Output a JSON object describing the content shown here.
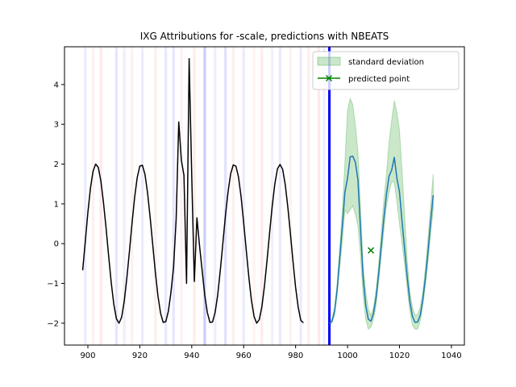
{
  "chart_data": {
    "type": "line",
    "title": "IXG Attributions for -scale, predictions with NBEATS",
    "xlabel": "",
    "ylabel": "",
    "xlim": [
      891,
      1045
    ],
    "ylim": [
      -2.55,
      4.95
    ],
    "x_ticks": [
      900,
      920,
      940,
      960,
      980,
      1000,
      1020,
      1040
    ],
    "y_ticks": [
      -2,
      -1,
      0,
      1,
      2,
      3,
      4
    ],
    "grid": false,
    "legend": {
      "placement": "top-right",
      "entries": [
        "standard deviation",
        "predicted point"
      ]
    },
    "colors": {
      "input_series": "#000000",
      "prediction_series": "#1f77b4",
      "std_band": "#2ca02c",
      "predicted_point": "#008000",
      "split_line": "#0000ff",
      "attr_positive": "#ff0000",
      "attr_negative": "#0000ff"
    },
    "split_x": 993,
    "input_series": {
      "x_start": 898,
      "step": 1,
      "y": [
        -0.67,
        0.05,
        0.78,
        1.4,
        1.82,
        2.0,
        1.92,
        1.58,
        1.04,
        0.4,
        -0.31,
        -0.98,
        -1.53,
        -1.89,
        -2.0,
        -1.85,
        -1.45,
        -0.87,
        -0.2,
        0.51,
        1.16,
        1.66,
        1.95,
        1.97,
        1.74,
        1.27,
        0.65,
        -0.04,
        -0.73,
        -1.32,
        -1.75,
        -1.98,
        -1.96,
        -1.7,
        -1.22,
        -0.59,
        0.62,
        3.06,
        2.1,
        1.72,
        -1.0,
        4.65,
        1.7,
        -0.95,
        0.65,
        -0.05,
        -0.67,
        -1.29,
        -1.73,
        -1.98,
        -1.97,
        -1.73,
        -1.29,
        -0.67,
        0.02,
        0.72,
        1.31,
        1.76,
        1.98,
        1.95,
        1.68,
        1.18,
        0.53,
        -0.17,
        -0.85,
        -1.43,
        -1.83,
        -2.0,
        -1.91,
        -1.59,
        -1.07,
        -0.42,
        0.28,
        0.95,
        1.5,
        1.88,
        1.99,
        1.87,
        1.49,
        0.92,
        0.25,
        -0.45,
        -1.1,
        -1.6,
        -1.93,
        -1.99
      ],
      "comment_spike_x": 945
    },
    "prediction_series": {
      "x_start": 993,
      "step": 1,
      "y": [
        -2.0,
        -1.95,
        -1.7,
        -1.15,
        -0.35,
        0.45,
        1.3,
        1.65,
        2.18,
        2.2,
        2.05,
        1.6,
        0.35,
        -0.85,
        -1.55,
        -1.9,
        -1.95,
        -1.75,
        -1.35,
        -0.75,
        -0.05,
        0.65,
        1.25,
        1.7,
        1.85,
        2.17,
        1.65,
        1.3,
        0.55,
        -0.15,
        -0.85,
        -1.45,
        -1.83,
        -1.98,
        -1.97,
        -1.8,
        -1.4,
        -0.85,
        -0.2,
        0.55,
        1.22
      ]
    },
    "std_band": {
      "x_start": 993,
      "step": 1,
      "lower": [
        -2.05,
        -2.0,
        -1.8,
        -1.3,
        -0.6,
        0.05,
        0.85,
        0.75,
        0.85,
        0.95,
        0.75,
        0.45,
        -0.3,
        -1.3,
        -1.9,
        -2.15,
        -2.1,
        -1.9,
        -1.55,
        -0.95,
        -0.3,
        0.35,
        0.95,
        1.3,
        1.55,
        1.55,
        1.05,
        0.5,
        0.0,
        -0.55,
        -1.15,
        -1.7,
        -2.05,
        -2.15,
        -2.15,
        -1.95,
        -1.55,
        -1.05,
        -0.45,
        0.25,
        0.85
      ],
      "upper": [
        -1.95,
        -1.9,
        -1.6,
        -1.0,
        -0.1,
        0.85,
        2.05,
        3.35,
        3.65,
        3.5,
        3.0,
        2.3,
        0.9,
        -0.55,
        -1.2,
        -1.65,
        -1.8,
        -1.6,
        -1.15,
        -0.5,
        0.3,
        1.1,
        1.75,
        2.55,
        3.1,
        3.6,
        3.3,
        2.85,
        1.8,
        0.7,
        -0.45,
        -1.2,
        -1.6,
        -1.8,
        -1.78,
        -1.6,
        -1.2,
        -0.6,
        0.15,
        0.95,
        1.75
      ]
    },
    "predicted_point": {
      "x": 1009,
      "y": -0.17
    },
    "attributions": [
      {
        "x": 899,
        "sign": "neg",
        "strength": 0.08
      },
      {
        "x": 902,
        "sign": "pos",
        "strength": 0.06
      },
      {
        "x": 905,
        "sign": "pos",
        "strength": 0.09
      },
      {
        "x": 911,
        "sign": "neg",
        "strength": 0.1
      },
      {
        "x": 914,
        "sign": "neg",
        "strength": 0.07
      },
      {
        "x": 917,
        "sign": "pos",
        "strength": 0.06
      },
      {
        "x": 921,
        "sign": "neg",
        "strength": 0.08
      },
      {
        "x": 926,
        "sign": "pos",
        "strength": 0.07
      },
      {
        "x": 930,
        "sign": "neg",
        "strength": 0.09
      },
      {
        "x": 933,
        "sign": "neg",
        "strength": 0.1
      },
      {
        "x": 936,
        "sign": "pos",
        "strength": 0.06
      },
      {
        "x": 941,
        "sign": "pos",
        "strength": 0.08
      },
      {
        "x": 945,
        "sign": "neg",
        "strength": 0.2
      },
      {
        "x": 949,
        "sign": "neg",
        "strength": 0.07
      },
      {
        "x": 953,
        "sign": "neg",
        "strength": 0.12
      },
      {
        "x": 956,
        "sign": "pos",
        "strength": 0.07
      },
      {
        "x": 960,
        "sign": "neg",
        "strength": 0.08
      },
      {
        "x": 964,
        "sign": "pos",
        "strength": 0.05
      },
      {
        "x": 967,
        "sign": "pos",
        "strength": 0.08
      },
      {
        "x": 971,
        "sign": "neg",
        "strength": 0.06
      },
      {
        "x": 974,
        "sign": "neg",
        "strength": 0.09
      },
      {
        "x": 978,
        "sign": "pos",
        "strength": 0.06
      },
      {
        "x": 982,
        "sign": "neg",
        "strength": 0.08
      },
      {
        "x": 985,
        "sign": "pos",
        "strength": 0.07
      },
      {
        "x": 989,
        "sign": "pos",
        "strength": 0.09
      },
      {
        "x": 991,
        "sign": "neg",
        "strength": 0.07
      }
    ]
  }
}
